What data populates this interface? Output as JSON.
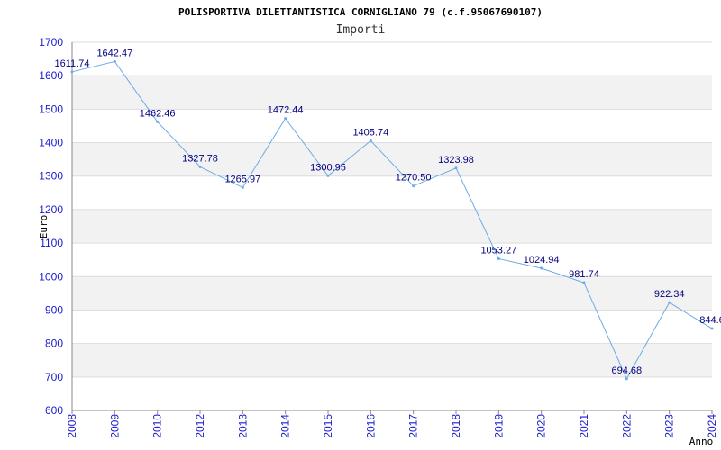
{
  "chart_data": {
    "type": "line",
    "title": "POLISPORTIVA DILETTANTISTICA CORNIGLIANO 79 (c.f.95067690107)",
    "subtitle": "Importi",
    "xlabel": "Anno",
    "ylabel": "Euro",
    "ylim": [
      600,
      1700
    ],
    "yticks": [
      600,
      700,
      800,
      900,
      1000,
      1100,
      1200,
      1300,
      1400,
      1500,
      1600,
      1700
    ],
    "x": [
      "2008",
      "2009",
      "2010",
      "2012",
      "2013",
      "2014",
      "2015",
      "2016",
      "2017",
      "2018",
      "2019",
      "2020",
      "2021",
      "2022",
      "2023",
      "2024"
    ],
    "values": [
      1611.74,
      1642.47,
      1462.46,
      1327.78,
      1265.97,
      1472.44,
      1300.95,
      1405.74,
      1270.5,
      1323.98,
      1053.27,
      1024.94,
      981.74,
      694.68,
      922.34,
      844.6
    ],
    "data_labels": [
      "1611.74",
      "1642.47",
      "1462.46",
      "1327.78",
      "1265.97",
      "1472.44",
      "1300.95",
      "1405.74",
      "1270.50",
      "1323.98",
      "1053.27",
      "1024.94",
      "981.74",
      "694.68",
      "922.34",
      "844.6"
    ],
    "grid": true,
    "colors": {
      "line": "#6aaae8",
      "band": "#f2f2f2",
      "grid": "#dddddd",
      "tick_text": "#1a1acc",
      "label_text": "#000080",
      "axis": "#888888"
    }
  }
}
